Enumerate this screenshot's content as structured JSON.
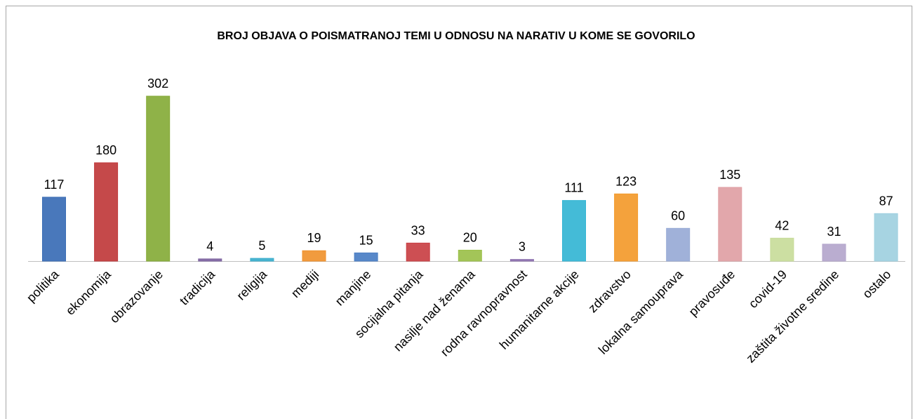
{
  "chart_data": {
    "type": "bar",
    "title": "BROJ OBJAVA O POISMATRANOJ TEMI U ODNOSU NA NARATIV U KOME SE GOVORILO",
    "categories": [
      "politika",
      "ekonomija",
      "obrazovanje",
      "tradicija",
      "religija",
      "mediji",
      "manjine",
      "socijalna pitanja",
      "nasilje nad ženama",
      "rodna ravnopravnost",
      "humanitarne akcije",
      "zdravstvo",
      "lokalna samouprava",
      "pravosuđe",
      "covid-19",
      "zaštita životne sredine",
      "ostalo"
    ],
    "values": [
      117,
      180,
      302,
      4,
      5,
      19,
      15,
      33,
      20,
      3,
      111,
      123,
      60,
      135,
      42,
      31,
      87
    ],
    "colors": [
      "#3a6db5",
      "#c0393b",
      "#86ab38",
      "#7d63a0",
      "#3aaecc",
      "#f0922e",
      "#4a7ec4",
      "#c94044",
      "#9bc04a",
      "#8b6fae",
      "#34b5d4",
      "#f39a2b",
      "#98aad6",
      "#e0a0a4",
      "#c8dc9a",
      "#b4a6cc",
      "#9fd0e0"
    ]
  }
}
